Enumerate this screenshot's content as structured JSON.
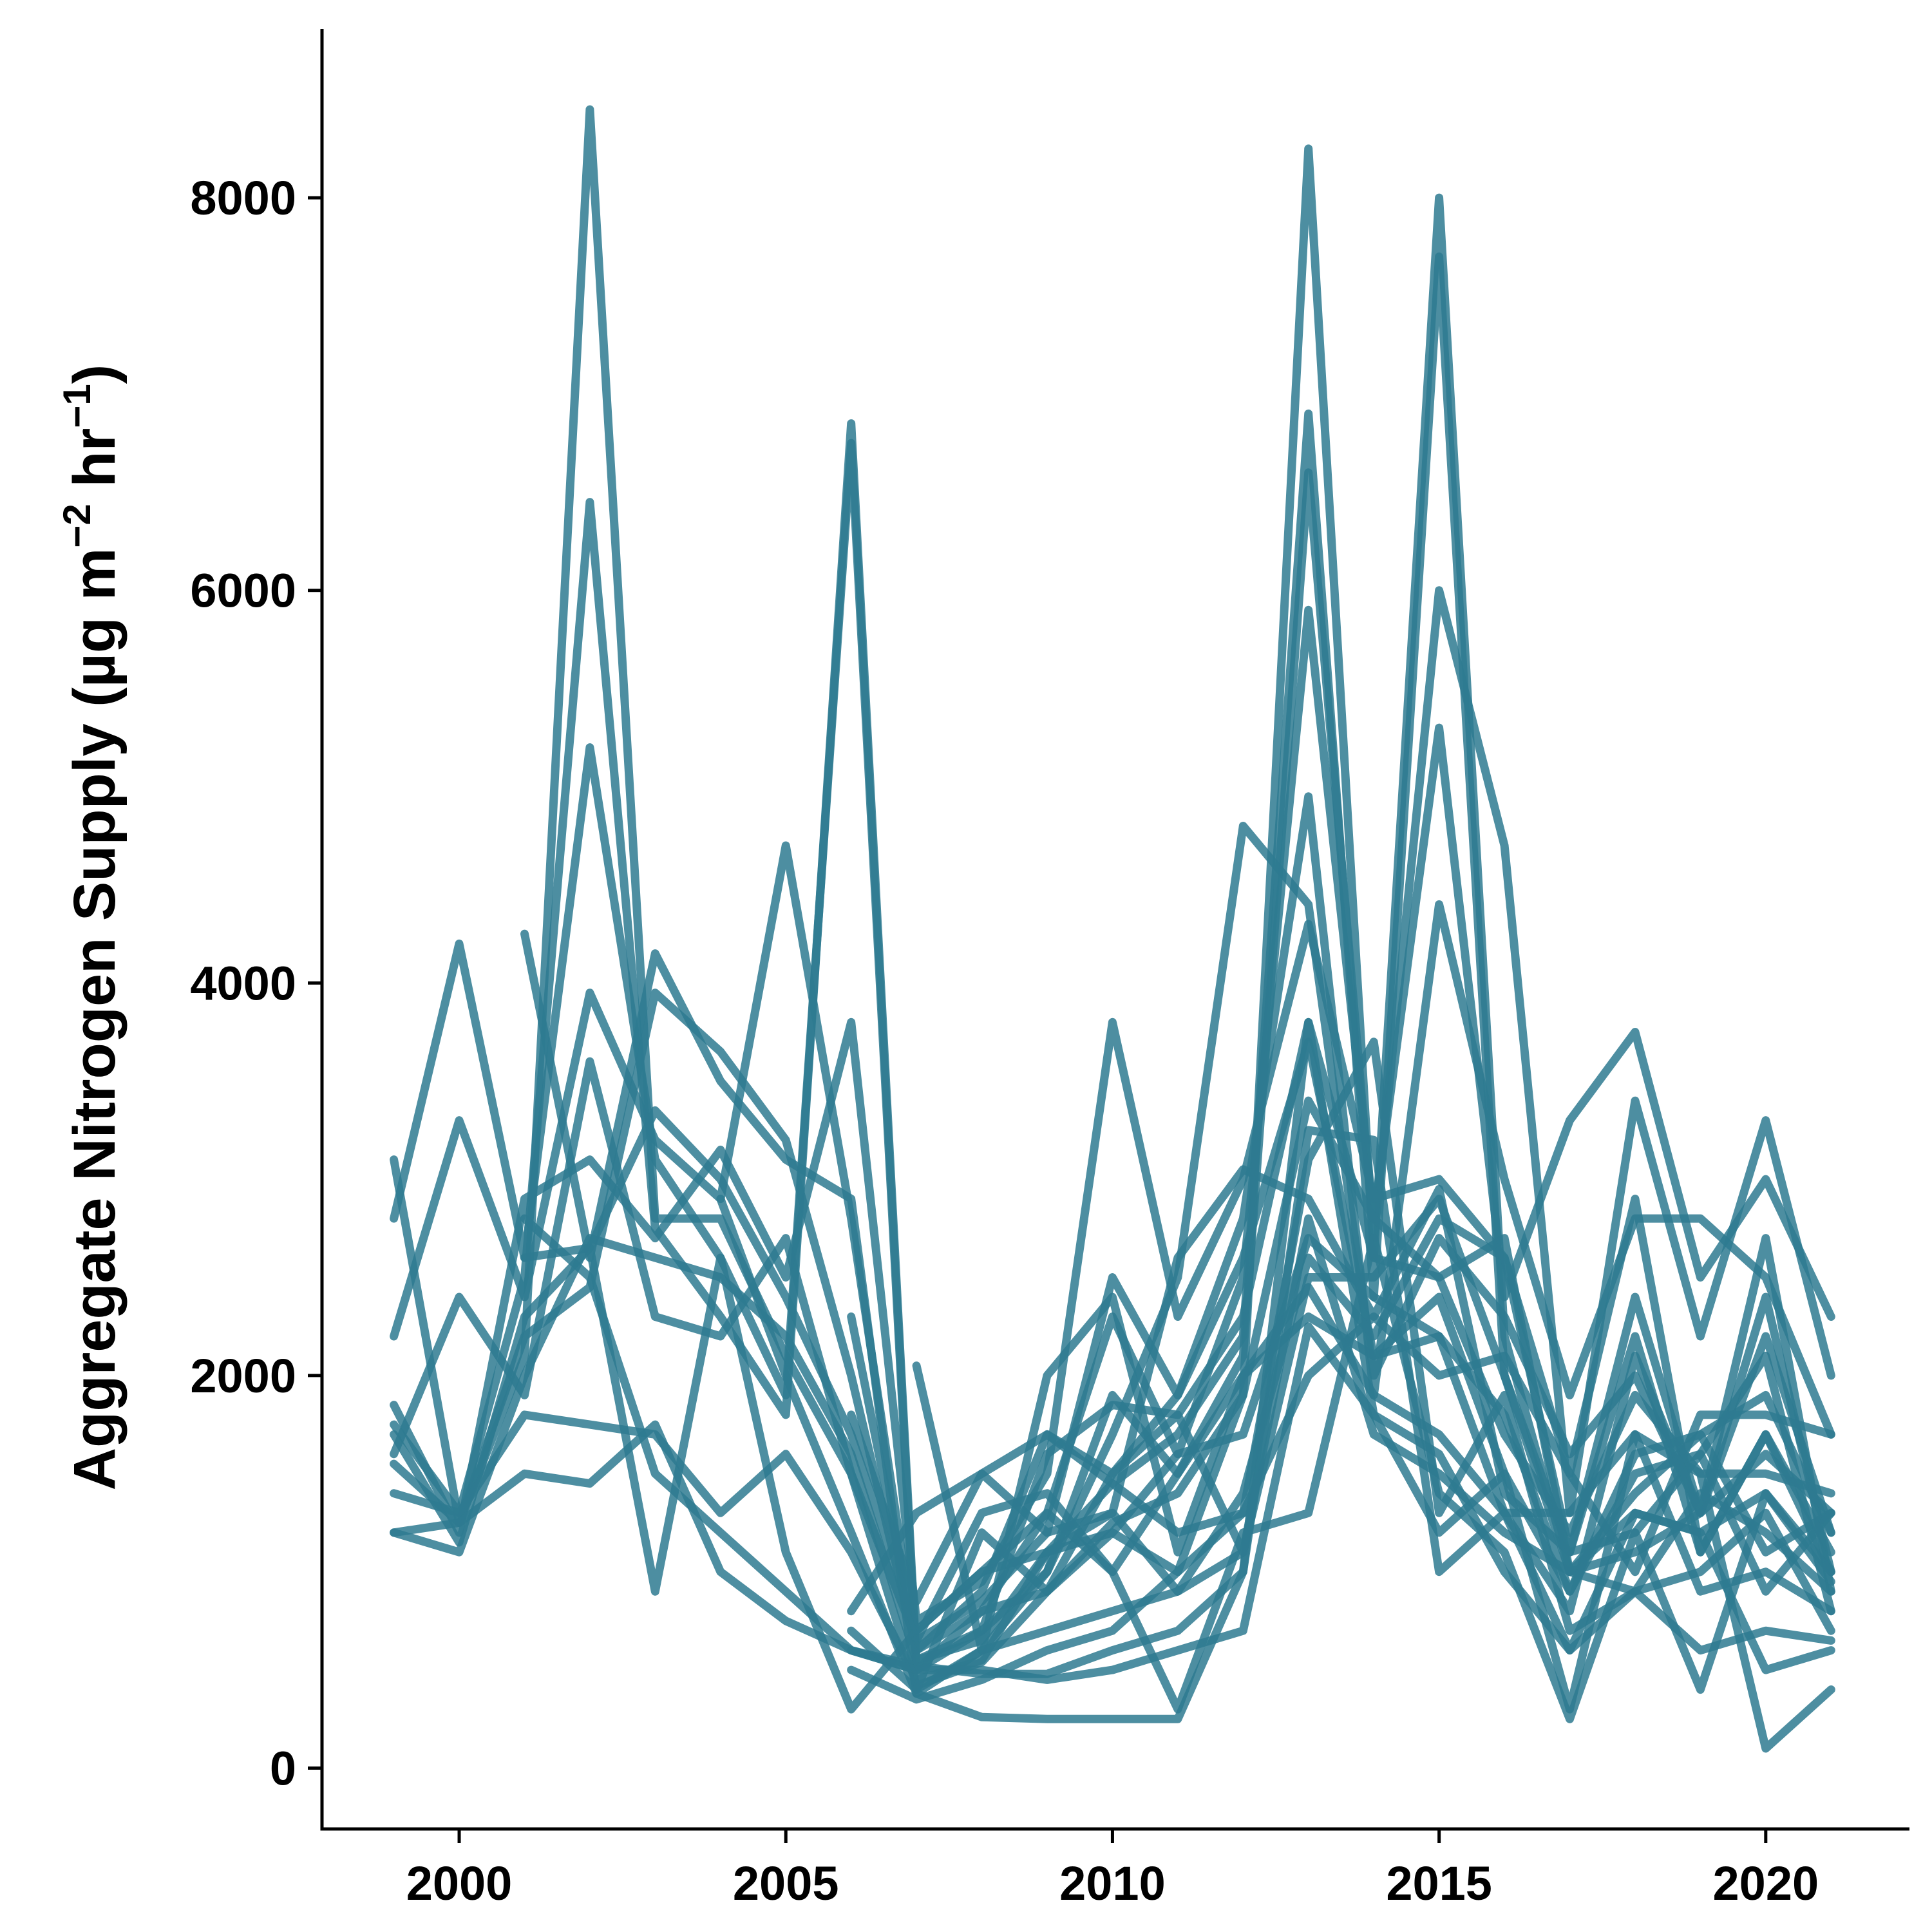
{
  "chart_data": {
    "type": "line",
    "title": "",
    "xlabel": "",
    "ylabel": {
      "prefix": "Aggregate Nitrogen Supply (µg  m",
      "sup1": "−2",
      "mid": "  hr",
      "sup2": "−1",
      "suffix": ")"
    },
    "xlim": [
      1997.9,
      2022.2
    ],
    "ylim": [
      -310,
      8860
    ],
    "x_ticks": [
      2000,
      2005,
      2010,
      2015,
      2020
    ],
    "x_tick_labels": [
      "2000",
      "2005",
      "2010",
      "2015",
      "2020"
    ],
    "y_ticks": [
      0,
      2000,
      4000,
      6000,
      8000
    ],
    "y_tick_labels": [
      "0",
      "2000",
      "4000",
      "6000",
      "8000"
    ],
    "legend": "none",
    "grid": false,
    "line_color": "#2e7a91",
    "line_opacity": 0.85,
    "x": [
      1999,
      2000,
      2001,
      2002,
      2003,
      2004,
      2005,
      2006,
      2007,
      2008,
      2009,
      2010,
      2011,
      2012,
      2013,
      2014,
      2015,
      2016,
      2017,
      2018,
      2019,
      2020,
      2021
    ],
    "series": [
      {
        "values": [
          3100,
          1250,
          2100,
          8450,
          2800,
          2800,
          2100,
          1500,
          420,
          540,
          900,
          1250,
          1400,
          1900,
          8250,
          2600,
          8000,
          2200,
          1000,
          1400,
          1700,
          1900,
          1200
        ]
      },
      {
        "values": [
          1750,
          1300,
          2500,
          6450,
          2750,
          2300,
          1800,
          6850,
          550,
          650,
          1100,
          1450,
          1700,
          2200,
          6900,
          2400,
          7700,
          2000,
          1100,
          2400,
          1300,
          2700,
          900
        ]
      },
      {
        "values": [
          2800,
          4200,
          2600,
          5200,
          3100,
          2600,
          1900,
          6750,
          500,
          700,
          1000,
          1900,
          1500,
          2100,
          6600,
          2700,
          6000,
          4700,
          1300,
          3400,
          2200,
          3300,
          2000
        ]
      },
      {
        "values": [
          2200,
          3300,
          2400,
          3950,
          3200,
          2900,
          4700,
          2800,
          600,
          800,
          1300,
          2300,
          1600,
          2500,
          5900,
          2800,
          5300,
          2400,
          3300,
          3750,
          2500,
          3000,
          2300
        ]
      },
      {
        "values": [
          1600,
          2400,
          1900,
          3600,
          2300,
          2200,
          2700,
          1500,
          650,
          850,
          1200,
          2500,
          1900,
          2800,
          4950,
          1900,
          4400,
          3000,
          1900,
          2800,
          2800,
          2500,
          1700
        ]
      },
      {
        "values": [
          1850,
          1200,
          2900,
          3100,
          2700,
          3150,
          2500,
          3800,
          750,
          950,
          1500,
          3800,
          2300,
          3000,
          4300,
          2900,
          3000,
          2600,
          1500,
          2900,
          1100,
          1700,
          1000
        ]
      },
      {
        "values": null,
        "start": 2001,
        "x": [
          2001,
          2002,
          2003,
          2004,
          2005,
          2006,
          2007,
          2008,
          2009,
          2010,
          2011,
          2012,
          2013,
          2014,
          2015,
          2016,
          2017,
          2018,
          2019,
          2020,
          2021
        ],
        "yv": [
          4250,
          2600,
          4150,
          3500,
          3100,
          2900,
          380,
          600,
          1000,
          1700,
          2500,
          4800,
          4400,
          2000,
          2700,
          2300,
          1600,
          2000,
          1300,
          2400,
          1000
        ]
      },
      {
        "values": [
          1200,
          1100,
          2000,
          2700,
          2600,
          2500,
          2200,
          1600,
          550,
          700,
          1600,
          1850,
          1800,
          2300,
          3800,
          2600,
          2500,
          1700,
          1200,
          1900,
          1500,
          1500,
          1400
        ]
      },
      {
        "values": [
          1550,
          1250,
          2200,
          2450,
          3950,
          3650,
          3200,
          2000,
          600,
          900,
          1700,
          1500,
          1900,
          2600,
          3700,
          2100,
          2200,
          1800,
          900,
          1600,
          1700,
          1100,
          1300
        ]
      },
      {
        "values": [
          1700,
          1150,
          2300,
          2650,
          3350,
          3000,
          2400,
          1700,
          700,
          1000,
          1100,
          1300,
          2600,
          3050,
          2900,
          2300,
          2950,
          1400,
          1100,
          1200,
          1600,
          2100,
          800
        ]
      },
      {
        "values": [
          1400,
          1300,
          1800,
          1750,
          1700,
          1300,
          1600,
          1100,
          450,
          550,
          1100,
          1200,
          1000,
          1300,
          3100,
          3700,
          1300,
          1900,
          700,
          900,
          1000,
          1300,
          700
        ]
      },
      {
        "values": [
          1200,
          1250,
          1500,
          1450,
          1750,
          1000,
          750,
          600,
          520,
          480,
          480,
          600,
          700,
          1000,
          3250,
          3200,
          1000,
          1300,
          600,
          1300,
          1200,
          500,
          600
        ]
      },
      {
        "values": null,
        "x": [
          2001,
          2002,
          2003,
          2004,
          2005,
          2006,
          2007,
          2008,
          2009,
          2010,
          2011,
          2012,
          2013,
          2014,
          2015,
          2016,
          2017,
          2018,
          2019,
          2020,
          2021
        ],
        "yv": [
          2800,
          2500,
          1500,
          1200,
          900,
          600,
          500,
          500,
          450,
          500,
          600,
          700,
          2250,
          1800,
          1200,
          1500,
          300,
          1700,
          1500,
          100,
          400
        ]
      },
      {
        "values": null,
        "x": [
          2001,
          2002,
          2003,
          2004,
          2005,
          2006,
          2007,
          2008,
          2009,
          2010,
          2011,
          2012,
          2013,
          2014,
          2015,
          2016,
          2017,
          2018,
          2019,
          2020,
          2021
        ],
        "yv": [
          2600,
          2650,
          900,
          2600,
          1100,
          300,
          700,
          1000,
          1300,
          1000,
          300,
          1200,
          1300,
          2700,
          1400,
          1100,
          250,
          1200,
          400,
          1400,
          950
        ]
      },
      {
        "values": null,
        "x": [
          2004,
          2005,
          2006,
          2007,
          2008,
          2009,
          2010,
          2011,
          2012,
          2013,
          2014,
          2015,
          2016,
          2017,
          2018,
          2019,
          2020,
          2021
        ],
        "yv": [
          2900,
          2000,
          1200,
          380,
          260,
          250,
          250,
          250,
          1000,
          3800,
          1800,
          1600,
          1000,
          600,
          900,
          600,
          700,
          650
        ]
      },
      {
        "values": null,
        "x": [
          2006,
          2007,
          2008,
          2009,
          2010,
          2011,
          2012,
          2013,
          2014,
          2015,
          2016,
          2017,
          2018,
          2019,
          2020,
          2021
        ],
        "yv": [
          1800,
          850,
          1500,
          1200,
          1300,
          900,
          1100,
          2500,
          2500,
          2900,
          2000,
          1000,
          1300,
          1200,
          1400,
          1000
        ]
      },
      {
        "values": null,
        "x": [
          2006,
          2007,
          2008,
          2009,
          2010,
          2011,
          2012,
          2013,
          2014,
          2015,
          2016,
          2017,
          2018,
          2019,
          2020,
          2021
        ],
        "yv": [
          800,
          1300,
          1500,
          1700,
          1450,
          1200,
          1300,
          2000,
          2300,
          2000,
          2100,
          1500,
          1000,
          1800,
          1800,
          1700
        ]
      },
      {
        "values": null,
        "x": [
          2006,
          2007,
          2008,
          2009,
          2010,
          2011,
          2012,
          2013,
          2014,
          2015,
          2016,
          2017,
          2018,
          2019,
          2020,
          2021
        ],
        "yv": [
          2300,
          650,
          1300,
          1400,
          1000,
          1500,
          2000,
          2300,
          2100,
          2400,
          1500,
          900,
          1500,
          1600,
          900,
          1300
        ]
      },
      {
        "values": null,
        "x": [
          2006,
          2007,
          2008,
          2009,
          2010,
          2011,
          2012,
          2013,
          2014,
          2015,
          2016,
          2017,
          2018,
          2019,
          2020,
          2021
        ],
        "yv": [
          600,
          500,
          800,
          900,
          1200,
          1600,
          1700,
          2700,
          2400,
          2200,
          1300,
          1300,
          1700,
          900,
          1000,
          800
        ]
      },
      {
        "values": null,
        "x": [
          2006,
          2007,
          2008,
          2009,
          2010,
          2011,
          2012,
          2013,
          2014,
          2015,
          2016,
          2017,
          2018,
          2019,
          2020,
          2021
        ],
        "yv": [
          700,
          400,
          600,
          700,
          800,
          900,
          1400,
          2600,
          2200,
          2800,
          2600,
          1100,
          2200,
          1100,
          1700,
          1100
        ]
      },
      {
        "values": null,
        "x": [
          2006,
          2007,
          2008,
          2009,
          2010,
          2011,
          2012,
          2013,
          2014,
          2015,
          2016,
          2017,
          2018,
          2019,
          2020,
          2021
        ],
        "yv": [
          500,
          350,
          450,
          600,
          700,
          1000,
          1900,
          3400,
          2800,
          2500,
          2700,
          1000,
          900,
          1400,
          1200,
          900
        ]
      },
      {
        "values": null,
        "x": [
          2007,
          2008,
          2009,
          2010,
          2011,
          2012,
          2013,
          2014,
          2015,
          2016,
          2017,
          2018,
          2019,
          2020,
          2021
        ],
        "yv": [
          2050,
          600,
          2000,
          2400,
          1100,
          2000,
          2450,
          1900,
          1700,
          1300,
          800,
          2100,
          1300,
          2200,
          1200
        ]
      },
      {
        "values": null,
        "x": [
          2007,
          2008,
          2009,
          2010,
          2011,
          2012,
          2013,
          2014,
          2015,
          2016,
          2017,
          2018,
          2019,
          2020,
          2021
        ],
        "yv": [
          400,
          1200,
          900,
          1500,
          1800,
          1100,
          2800,
          1700,
          1500,
          1200,
          1000,
          1100,
          1300,
          1600,
          1300
        ]
      }
    ]
  }
}
